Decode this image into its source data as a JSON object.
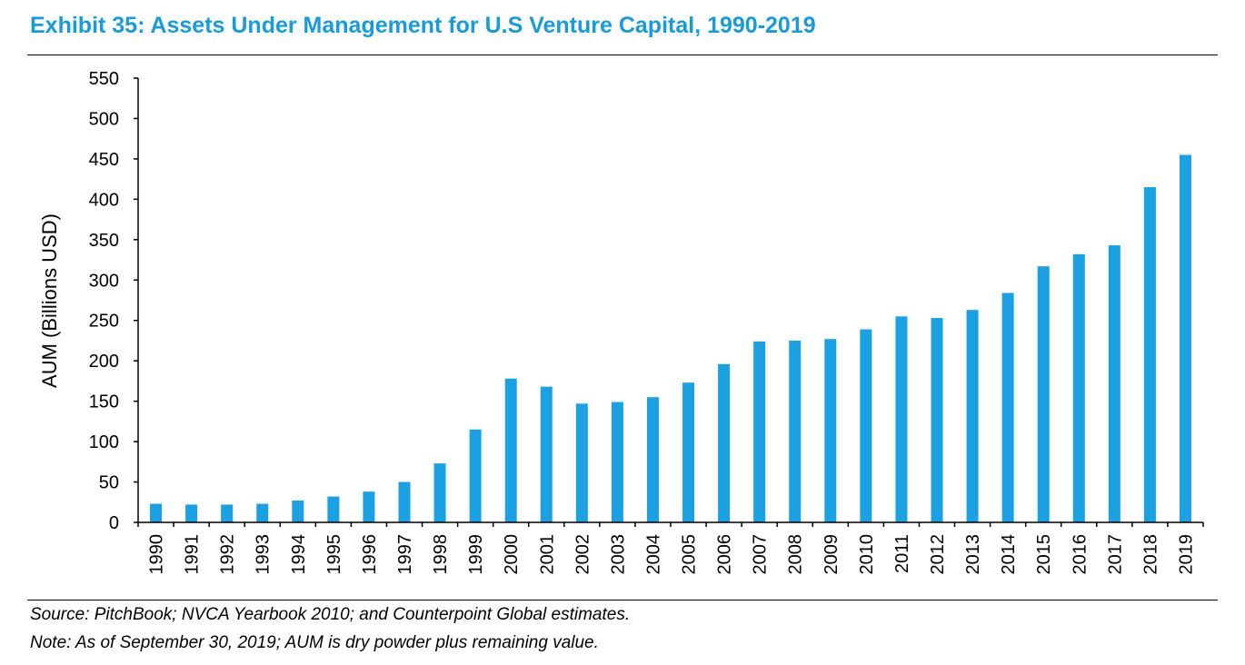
{
  "title": "Exhibit 35: Assets Under Management for U.S Venture Capital, 1990-2019",
  "source": "Source: PitchBook; NVCA Yearbook 2010; and Counterpoint Global estimates.",
  "note": "Note: As of September 30, 2019; AUM is dry powder plus remaining value.",
  "colors": {
    "bar": "#1ba1e2",
    "title": "#1a9ad6"
  },
  "chart_data": {
    "type": "bar",
    "title": "Exhibit 35: Assets Under Management for U.S Venture Capital, 1990-2019",
    "xlabel": "",
    "ylabel": "AUM (Billions USD)",
    "ylim": [
      0,
      550
    ],
    "yticks": [
      0,
      50,
      100,
      150,
      200,
      250,
      300,
      350,
      400,
      450,
      500,
      550
    ],
    "grid": false,
    "legend": "none",
    "categories": [
      "1990",
      "1991",
      "1992",
      "1993",
      "1994",
      "1995",
      "1996",
      "1997",
      "1998",
      "1999",
      "2000",
      "2001",
      "2002",
      "2003",
      "2004",
      "2005",
      "2006",
      "2007",
      "2008",
      "2009",
      "2010",
      "2011",
      "2012",
      "2013",
      "2014",
      "2015",
      "2016",
      "2017",
      "2018",
      "2019"
    ],
    "values": [
      23,
      22,
      22,
      23,
      27,
      32,
      38,
      50,
      73,
      115,
      178,
      168,
      147,
      149,
      155,
      173,
      196,
      224,
      225,
      227,
      239,
      255,
      253,
      263,
      284,
      317,
      332,
      343,
      415,
      455
    ]
  }
}
